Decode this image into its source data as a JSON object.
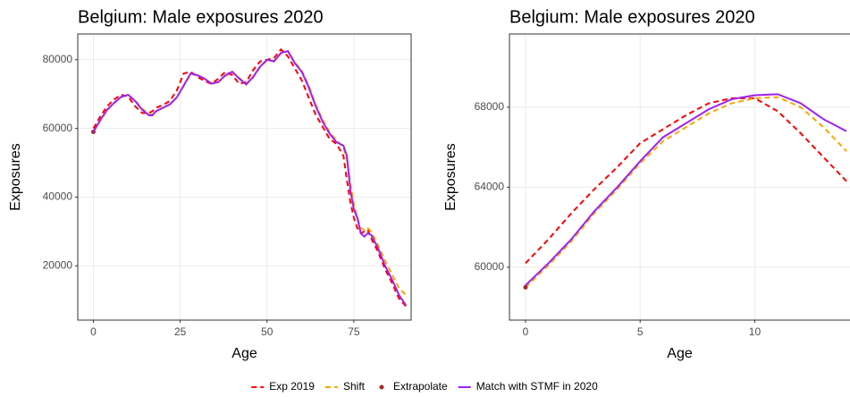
{
  "chart_data": [
    {
      "type": "line",
      "title": "Belgium: Male exposures 2020",
      "x_label": "Age",
      "y_label": "Exposures",
      "xlim": [
        -4.5,
        91.5
      ],
      "ylim": [
        4200,
        87500
      ],
      "xticks": [
        0,
        25,
        50,
        75
      ],
      "yticks": [
        20000,
        40000,
        60000,
        80000
      ],
      "grid": true,
      "legend": "bottom",
      "x": [
        0,
        2,
        4,
        6,
        8,
        10,
        12,
        14,
        16,
        17,
        18,
        20,
        22,
        24,
        26,
        28,
        30,
        32,
        34,
        36,
        38,
        40,
        42,
        44,
        46,
        48,
        50,
        52,
        54,
        56,
        58,
        60,
        62,
        64,
        66,
        68,
        70,
        72,
        73,
        74,
        75,
        76,
        77,
        78,
        79,
        80,
        82,
        84,
        86,
        88,
        90
      ],
      "series": [
        {
          "name": "Exp 2019",
          "color": "#ff0000",
          "style": "dashed",
          "values": [
            60000,
            63500,
            66500,
            68500,
            69800,
            69300,
            66500,
            64500,
            64500,
            65000,
            66000,
            66800,
            68000,
            71000,
            76000,
            76500,
            75000,
            73800,
            73000,
            74500,
            76500,
            75500,
            73000,
            73500,
            77000,
            79500,
            80000,
            80500,
            83000,
            81000,
            77500,
            74000,
            69000,
            64000,
            60500,
            57000,
            55500,
            52000,
            45000,
            38500,
            34000,
            31000,
            29500,
            30000,
            30500,
            28000,
            24000,
            19000,
            15000,
            10500,
            8200
          ]
        },
        {
          "name": "Shift",
          "color": "#ffa500",
          "style": "dashed",
          "values": [
            59000,
            62300,
            65300,
            67400,
            69100,
            69800,
            68200,
            65800,
            64200,
            64000,
            65000,
            66000,
            67000,
            69000,
            72300,
            75800,
            75500,
            74500,
            73200,
            73500,
            75300,
            76300,
            74700,
            73000,
            74800,
            77800,
            79800,
            79700,
            81800,
            82500,
            79300,
            76800,
            72500,
            67000,
            62500,
            59000,
            56500,
            54500,
            51000,
            44000,
            38000,
            34000,
            31000,
            30500,
            31000,
            30000,
            26000,
            21500,
            17500,
            13500,
            11500
          ]
        },
        {
          "name": "Extrapolate",
          "color": "#a52a2a",
          "style": "point",
          "x": [
            0
          ],
          "values": [
            59000
          ]
        },
        {
          "name": "Match with STMF in 2020",
          "color": "#a020f0",
          "style": "solid",
          "values": [
            59000,
            62500,
            65500,
            67500,
            69200,
            69800,
            68000,
            65500,
            63800,
            63800,
            65000,
            66000,
            67000,
            69000,
            72500,
            76000,
            75500,
            74500,
            73000,
            73500,
            75500,
            76500,
            74500,
            72800,
            75000,
            78000,
            80000,
            79500,
            82000,
            82500,
            79000,
            76500,
            72000,
            66500,
            62000,
            58500,
            56000,
            55000,
            52000,
            42000,
            36500,
            34000,
            29500,
            28500,
            29500,
            29000,
            25000,
            20000,
            16000,
            11500,
            8500
          ]
        }
      ]
    },
    {
      "type": "line",
      "title": "Belgium: Male exposures 2020",
      "x_label": "Age",
      "y_label": "Exposures",
      "xlim": [
        -0.7,
        14.7
      ],
      "ylim": [
        57360,
        71660
      ],
      "xticks": [
        0,
        5,
        10
      ],
      "yticks": [
        60000,
        64000,
        68000
      ],
      "grid": true,
      "x": [
        0,
        1,
        2,
        3,
        4,
        5,
        6,
        7,
        8,
        9,
        10,
        11,
        12,
        13,
        14
      ],
      "series": [
        {
          "color": "#ff0000",
          "style": "dashed",
          "values": [
            60200,
            61400,
            62700,
            63900,
            65000,
            66200,
            66900,
            67600,
            68200,
            68450,
            68450,
            67800,
            66700,
            65500,
            64300
          ]
        },
        {
          "color": "#ffa500",
          "style": "dashed",
          "values": [
            59000,
            60100,
            61300,
            62700,
            63900,
            65200,
            66300,
            67000,
            67700,
            68200,
            68450,
            68500,
            68000,
            67000,
            65800
          ]
        },
        {
          "color": "#a52a2a",
          "style": "point",
          "x": [
            0
          ],
          "values": [
            59000
          ]
        },
        {
          "color": "#a020f0",
          "style": "solid",
          "values": [
            59100,
            60200,
            61400,
            62800,
            64000,
            65300,
            66500,
            67200,
            67900,
            68400,
            68600,
            68650,
            68200,
            67400,
            66800
          ]
        }
      ]
    }
  ]
}
